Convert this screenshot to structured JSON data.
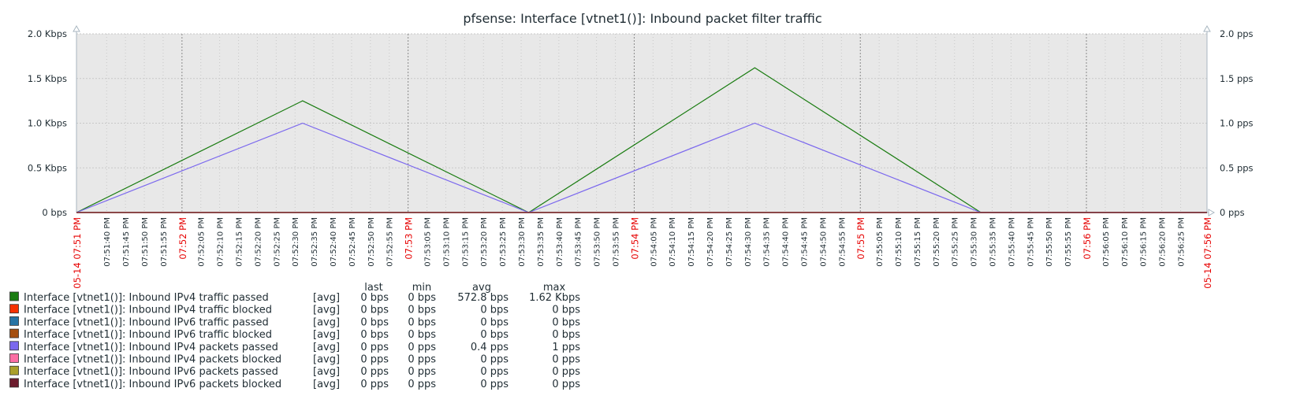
{
  "chart_data": {
    "type": "line",
    "title": "pfsense: Interface [vtnet1()]: Inbound packet filter traffic",
    "y_left": {
      "ticks": [
        "2.0 Kbps",
        "1.5 Kbps",
        "1.0 Kbps",
        "0.5 Kbps",
        "0 bps"
      ],
      "range": [
        0,
        2000
      ],
      "unit": "bps"
    },
    "y_right": {
      "ticks": [
        "2.0 pps",
        "1.5 pps",
        "1.0 pps",
        "0.5 pps",
        "0 pps"
      ],
      "range": [
        0,
        2
      ],
      "unit": "pps"
    },
    "x_range_seconds": [
      0,
      300
    ],
    "x_ticks": [
      "07:51:40 PM",
      "07:51:45 PM",
      "07:51:50 PM",
      "07:51:55 PM",
      "07:52:05 PM",
      "07:52:10 PM",
      "07:52:15 PM",
      "07:52:20 PM",
      "07:52:25 PM",
      "07:52:30 PM",
      "07:52:35 PM",
      "07:52:40 PM",
      "07:52:45 PM",
      "07:52:50 PM",
      "07:52:55 PM",
      "07:53:05 PM",
      "07:53:10 PM",
      "07:53:15 PM",
      "07:53:20 PM",
      "07:53:25 PM",
      "07:53:30 PM",
      "07:53:35 PM",
      "07:53:40 PM",
      "07:53:45 PM",
      "07:53:50 PM",
      "07:53:55 PM",
      "07:54:05 PM",
      "07:54:10 PM",
      "07:54:15 PM",
      "07:54:20 PM",
      "07:54:25 PM",
      "07:54:30 PM",
      "07:54:35 PM",
      "07:54:40 PM",
      "07:54:45 PM",
      "07:54:50 PM",
      "07:54:55 PM",
      "07:55:05 PM",
      "07:55:10 PM",
      "07:55:15 PM",
      "07:55:20 PM",
      "07:55:25 PM",
      "07:55:30 PM",
      "07:55:35 PM",
      "07:55:40 PM",
      "07:55:45 PM",
      "07:55:50 PM",
      "07:55:55 PM",
      "07:56:05 PM",
      "07:56:10 PM",
      "07:56:15 PM",
      "07:56:20 PM",
      "07:56:25 PM"
    ],
    "x_major_ticks": [
      "05-14 07:51 PM",
      "07:52 PM",
      "07:53 PM",
      "07:54 PM",
      "07:55 PM",
      "07:56 PM",
      "05-14 07:56 PM"
    ],
    "series": [
      {
        "name": "Interface [vtnet1()]: Inbound IPv4 traffic passed",
        "axis": "left",
        "color": "#1a7c11",
        "x": [
          0,
          60,
          120,
          180,
          240,
          300
        ],
        "y": [
          0,
          1250,
          0,
          1620,
          0,
          0
        ],
        "last": "0 bps",
        "min": "0 bps",
        "avg": "572.8 bps",
        "max": "1.62 Kbps"
      },
      {
        "name": "Interface [vtnet1()]: Inbound IPv4 traffic blocked",
        "axis": "left",
        "color": "#f63100",
        "x": [
          0,
          300
        ],
        "y": [
          0,
          0
        ],
        "last": "0 bps",
        "min": "0 bps",
        "avg": "0 bps",
        "max": "0 bps"
      },
      {
        "name": "Interface [vtnet1()]: Inbound IPv6 traffic passed",
        "axis": "left",
        "color": "#2774a4",
        "x": [
          0,
          300
        ],
        "y": [
          0,
          0
        ],
        "last": "0 bps",
        "min": "0 bps",
        "avg": "0 bps",
        "max": "0 bps"
      },
      {
        "name": "Interface [vtnet1()]: Inbound IPv6 traffic blocked",
        "axis": "left",
        "color": "#a54f10",
        "x": [
          0,
          300
        ],
        "y": [
          0,
          0
        ],
        "last": "0 bps",
        "min": "0 bps",
        "avg": "0 bps",
        "max": "0 bps"
      },
      {
        "name": "Interface [vtnet1()]: Inbound IPv4 packets passed",
        "axis": "right",
        "color": "#7b68ee",
        "x": [
          0,
          60,
          120,
          180,
          240,
          300
        ],
        "y": [
          0,
          1,
          0,
          1,
          0,
          0
        ],
        "last": "0 pps",
        "min": "0 pps",
        "avg": "0.4 pps",
        "max": "1 pps"
      },
      {
        "name": "Interface [vtnet1()]: Inbound IPv4 packets blocked",
        "axis": "right",
        "color": "#fc6ea3",
        "x": [
          0,
          300
        ],
        "y": [
          0,
          0
        ],
        "last": "0 pps",
        "min": "0 pps",
        "avg": "0 pps",
        "max": "0 pps"
      },
      {
        "name": "Interface [vtnet1()]: Inbound IPv6 packets passed",
        "axis": "right",
        "color": "#a99f2a",
        "x": [
          0,
          300
        ],
        "y": [
          0,
          0
        ],
        "last": "0 pps",
        "min": "0 pps",
        "avg": "0 pps",
        "max": "0 pps"
      },
      {
        "name": "Interface [vtnet1()]: Inbound IPv6 packets blocked",
        "axis": "right",
        "color": "#6c1b2d",
        "x": [
          0,
          300
        ],
        "y": [
          0,
          0
        ],
        "last": "0 pps",
        "min": "0 pps",
        "avg": "0 pps",
        "max": "0 pps"
      }
    ],
    "legend": {
      "placement": "bottom",
      "func_label": "[avg]",
      "headers": [
        "last",
        "min",
        "avg",
        "max"
      ]
    },
    "grid": true,
    "colors": {
      "plot_background": "#e8e8e8",
      "grid": "#c8c8c8",
      "axis": "#a8b6c0",
      "time_major": "#e60000"
    }
  }
}
